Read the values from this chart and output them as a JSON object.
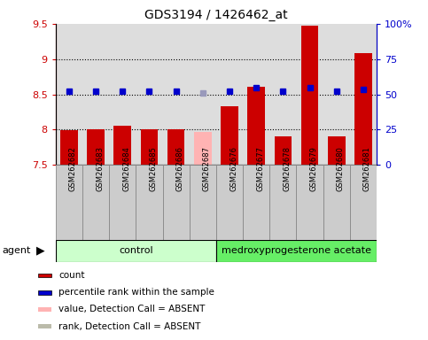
{
  "title": "GDS3194 / 1426462_at",
  "samples": [
    "GSM262682",
    "GSM262683",
    "GSM262684",
    "GSM262685",
    "GSM262686",
    "GSM262687",
    "GSM262676",
    "GSM262677",
    "GSM262678",
    "GSM262679",
    "GSM262680",
    "GSM262681"
  ],
  "bar_values": [
    7.99,
    8.01,
    8.05,
    8.01,
    8.01,
    7.97,
    8.33,
    8.61,
    7.91,
    9.47,
    7.91,
    9.09
  ],
  "bar_colors": [
    "#cc0000",
    "#cc0000",
    "#cc0000",
    "#cc0000",
    "#cc0000",
    "#ffb3b3",
    "#cc0000",
    "#cc0000",
    "#cc0000",
    "#cc0000",
    "#cc0000",
    "#cc0000"
  ],
  "dot_values": [
    8.54,
    8.54,
    8.54,
    8.54,
    8.54,
    8.52,
    8.54,
    8.6,
    8.54,
    8.59,
    8.54,
    8.57
  ],
  "dot_colors": [
    "#0000cc",
    "#0000cc",
    "#0000cc",
    "#0000cc",
    "#0000cc",
    "#9999bb",
    "#0000cc",
    "#0000cc",
    "#0000cc",
    "#0000cc",
    "#0000cc",
    "#0000cc"
  ],
  "ymin": 7.5,
  "ymax": 9.5,
  "y2min": 0,
  "y2max": 100,
  "yticks": [
    7.5,
    8.0,
    8.5,
    9.0,
    9.5
  ],
  "ytick_labels": [
    "7.5",
    "8",
    "8.5",
    "9",
    "9.5"
  ],
  "y2ticks": [
    0,
    25,
    50,
    75,
    100
  ],
  "y2tick_labels": [
    "0",
    "25",
    "50",
    "75",
    "100%"
  ],
  "dotted_lines": [
    8.0,
    8.5,
    9.0
  ],
  "group1_label": "control",
  "group1_count": 6,
  "group2_label": "medroxyprogesterone acetate",
  "group2_count": 6,
  "group1_color": "#ccffcc",
  "group2_color": "#66ee66",
  "agent_label": "agent",
  "legend_items": [
    {
      "color": "#cc0000",
      "label": "count",
      "marker": "square"
    },
    {
      "color": "#0000cc",
      "label": "percentile rank within the sample",
      "marker": "square"
    },
    {
      "color": "#ffb3b3",
      "label": "value, Detection Call = ABSENT",
      "marker": "square"
    },
    {
      "color": "#bbbbaa",
      "label": "rank, Detection Call = ABSENT",
      "marker": "square"
    }
  ],
  "bar_width": 0.65,
  "yaxis_color": "#cc0000",
  "y2axis_color": "#0000cc",
  "sample_box_color": "#cccccc",
  "sample_box_edge": "#888888",
  "plot_bg_color": "#dddddd"
}
